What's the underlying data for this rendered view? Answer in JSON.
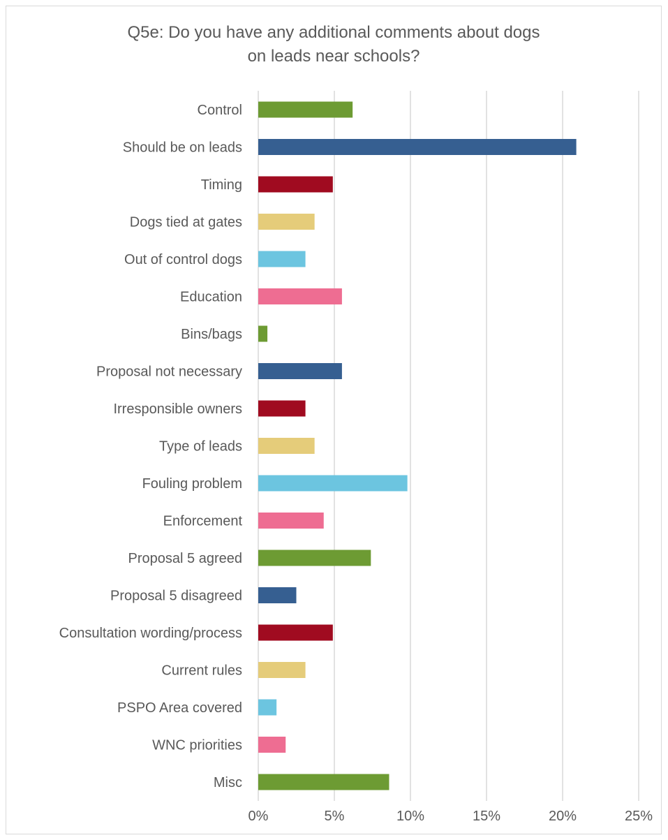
{
  "chart_data": {
    "type": "bar",
    "orientation": "horizontal",
    "title": "Q5e: Do you have any additional comments about dogs on leads near schools?",
    "title_lines": [
      "Q5e: Do you have any additional comments about dogs",
      "on leads near schools?"
    ],
    "categories": [
      "Control",
      "Should be on leads",
      "Timing",
      "Dogs tied at gates",
      "Out of control dogs",
      "Education",
      "Bins/bags",
      "Proposal not necessary",
      "Irresponsible owners",
      "Type of leads",
      "Fouling problem",
      "Enforcement",
      "Proposal 5 agreed",
      "Proposal 5 disagreed",
      "Consultation wording/process",
      "Current rules",
      "PSPO Area covered",
      "WNC priorities",
      "Misc"
    ],
    "values": [
      6.2,
      20.9,
      4.9,
      3.7,
      3.1,
      5.5,
      0.6,
      5.5,
      3.1,
      3.7,
      9.8,
      4.3,
      7.4,
      2.5,
      4.9,
      3.1,
      1.2,
      1.8,
      8.6
    ],
    "colors": [
      "#6d9b33",
      "#365f91",
      "#a00b20",
      "#e5cc7a",
      "#6cc5e0",
      "#ee6d92"
    ],
    "xlim": [
      0,
      25
    ],
    "xticks": [
      0,
      5,
      10,
      15,
      20,
      25
    ],
    "xtick_labels": [
      "0%",
      "5%",
      "10%",
      "15%",
      "20%",
      "25%"
    ],
    "xlabel": "",
    "ylabel": "",
    "grid": true,
    "legend": "none"
  }
}
